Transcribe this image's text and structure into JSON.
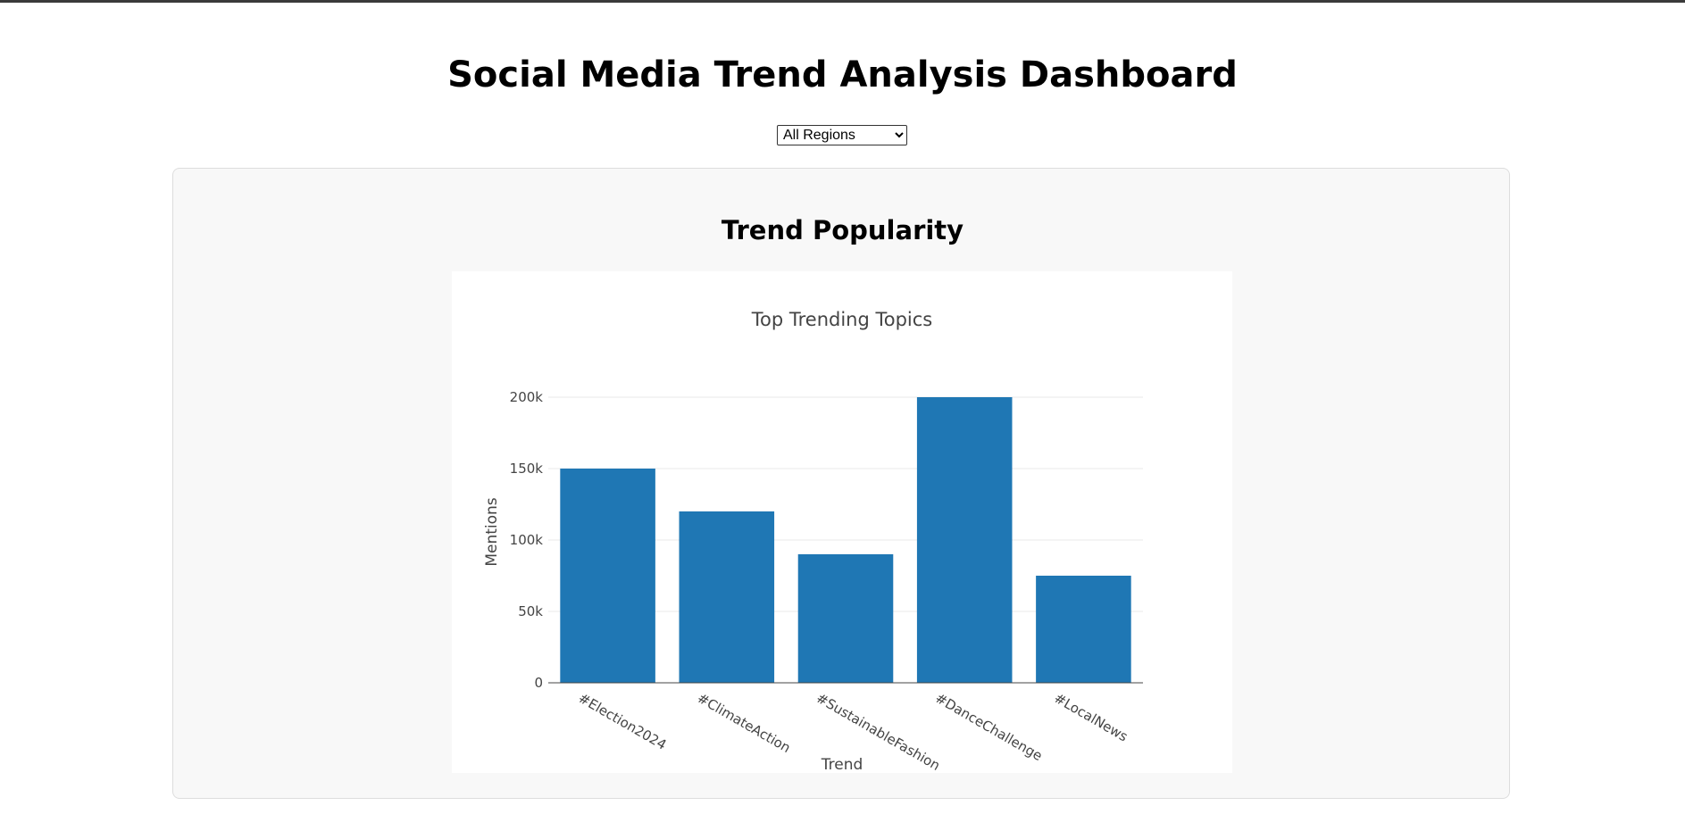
{
  "page": {
    "title": "Social Media Trend Analysis Dashboard",
    "section_title": "Trend Popularity"
  },
  "region_filter": {
    "selected": "All Regions"
  },
  "colors": {
    "bar": "#1f77b4",
    "panel_bg": "#f8f8f8"
  },
  "chart_data": {
    "type": "bar",
    "title": "Top Trending Topics",
    "xlabel": "Trend",
    "ylabel": "Mentions",
    "categories": [
      "#Election2024",
      "#ClimateAction",
      "#SustainableFashion",
      "#DanceChallenge",
      "#LocalNews"
    ],
    "values": [
      150000,
      120000,
      90000,
      200000,
      75000
    ],
    "ylim": [
      0,
      200000
    ],
    "yticks": [
      0,
      50000,
      100000,
      150000,
      200000
    ],
    "ytick_labels": [
      "0",
      "50k",
      "100k",
      "150k",
      "200k"
    ],
    "grid": true,
    "legend": "none"
  }
}
